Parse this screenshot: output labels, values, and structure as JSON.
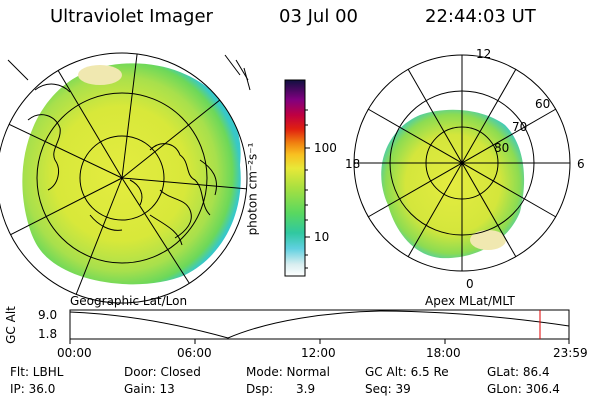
{
  "header": {
    "title": "Ultraviolet Imager",
    "date": "03 Jul 00",
    "time": "22:44:03 UT"
  },
  "left_panel": {
    "caption": "Geographic Lat/Lon"
  },
  "right_panel": {
    "caption": "Apex MLat/MLT",
    "mlt_labels": [
      "12",
      "18",
      "6",
      "0"
    ],
    "mlat_labels": [
      "60",
      "70",
      "80"
    ]
  },
  "colorbar": {
    "unit_label": "photon cm⁻²s⁻¹",
    "ticks": [
      "100",
      "10"
    ]
  },
  "altitude_plot": {
    "ylabel": "GC Alt",
    "y_ticks": [
      "9.0",
      "1.8"
    ],
    "x_ticks": [
      "00:00",
      "06:00",
      "12:00",
      "18:00",
      "23:59"
    ]
  },
  "status": {
    "row1": [
      {
        "key": "flt",
        "text": "Flt: LBHL"
      },
      {
        "key": "door",
        "text": "Door: Closed"
      },
      {
        "key": "mode",
        "text": "Mode: Normal"
      },
      {
        "key": "gcalt",
        "text": "GC Alt: 6.5 Re"
      },
      {
        "key": "glat",
        "text": "GLat:  86.4"
      }
    ],
    "row2": [
      {
        "key": "ip",
        "text": "IP: 36.0"
      },
      {
        "key": "gain",
        "text": "Gain: 13"
      },
      {
        "key": "dsp",
        "text": "Dsp:      3.9"
      },
      {
        "key": "seq",
        "text": "Seq: 39"
      },
      {
        "key": "glon",
        "text": "GLon: 306.4"
      }
    ]
  },
  "colors": {
    "aurora_main": "#d8e83a",
    "aurora_green": "#6cd85a",
    "aurora_edge": "#38c8c8",
    "bright": "#f0e8b0",
    "marker": "#e00000"
  }
}
